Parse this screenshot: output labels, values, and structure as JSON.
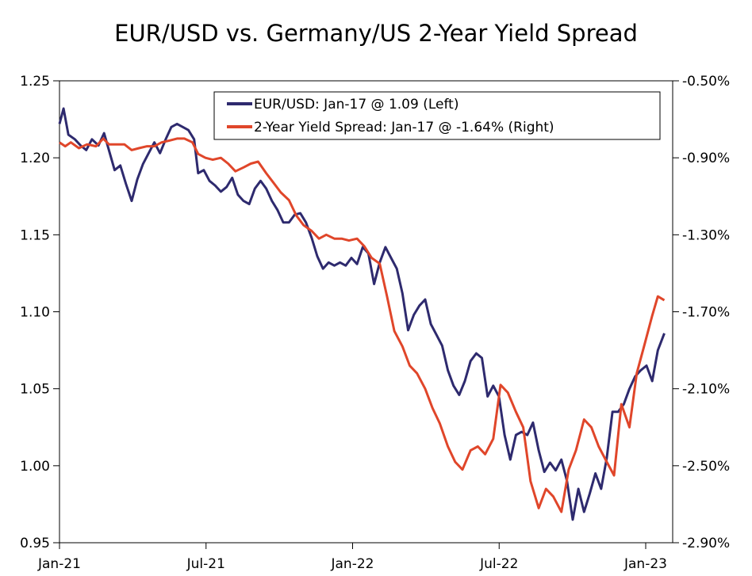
{
  "chart_data": {
    "type": "line",
    "title": "EUR/USD vs. Germany/US 2-Year Yield Spread",
    "x_ticks": [
      "Jan-21",
      "Jul-21",
      "Jan-22",
      "Jul-22",
      "Jan-23"
    ],
    "y_left": {
      "ylim": [
        0.95,
        1.25
      ],
      "ticks": [
        "0.95",
        "1.00",
        "1.05",
        "1.10",
        "1.15",
        "1.20",
        "1.25"
      ]
    },
    "y_right": {
      "ylim": [
        -2.9,
        -0.5
      ],
      "ticks": [
        "-2.90%",
        "-2.50%",
        "-2.10%",
        "-1.70%",
        "-1.30%",
        "-0.90%",
        "-0.50%"
      ]
    },
    "series": [
      {
        "name": "EUR/USD: Jan-17 @ 1.09 (Left)",
        "axis": "left",
        "color": "#2e2a6e",
        "points": [
          [
            "2021-01-01",
            1.222
          ],
          [
            "2021-01-06",
            1.232
          ],
          [
            "2021-01-12",
            1.215
          ],
          [
            "2021-01-20",
            1.212
          ],
          [
            "2021-01-27",
            1.208
          ],
          [
            "2021-02-03",
            1.205
          ],
          [
            "2021-02-10",
            1.212
          ],
          [
            "2021-02-18",
            1.208
          ],
          [
            "2021-02-25",
            1.216
          ],
          [
            "2021-03-03",
            1.205
          ],
          [
            "2021-03-10",
            1.192
          ],
          [
            "2021-03-17",
            1.195
          ],
          [
            "2021-03-24",
            1.183
          ],
          [
            "2021-03-31",
            1.172
          ],
          [
            "2021-04-07",
            1.186
          ],
          [
            "2021-04-14",
            1.196
          ],
          [
            "2021-04-21",
            1.203
          ],
          [
            "2021-04-28",
            1.21
          ],
          [
            "2021-05-05",
            1.203
          ],
          [
            "2021-05-12",
            1.212
          ],
          [
            "2021-05-19",
            1.22
          ],
          [
            "2021-05-26",
            1.222
          ],
          [
            "2021-06-02",
            1.22
          ],
          [
            "2021-06-09",
            1.218
          ],
          [
            "2021-06-16",
            1.212
          ],
          [
            "2021-06-21",
            1.19
          ],
          [
            "2021-06-28",
            1.192
          ],
          [
            "2021-07-05",
            1.185
          ],
          [
            "2021-07-12",
            1.182
          ],
          [
            "2021-07-19",
            1.178
          ],
          [
            "2021-07-26",
            1.181
          ],
          [
            "2021-08-02",
            1.187
          ],
          [
            "2021-08-09",
            1.176
          ],
          [
            "2021-08-16",
            1.172
          ],
          [
            "2021-08-23",
            1.17
          ],
          [
            "2021-08-30",
            1.18
          ],
          [
            "2021-09-06",
            1.185
          ],
          [
            "2021-09-13",
            1.18
          ],
          [
            "2021-09-20",
            1.172
          ],
          [
            "2021-09-27",
            1.166
          ],
          [
            "2021-10-04",
            1.158
          ],
          [
            "2021-10-11",
            1.158
          ],
          [
            "2021-10-18",
            1.163
          ],
          [
            "2021-10-25",
            1.164
          ],
          [
            "2021-11-01",
            1.158
          ],
          [
            "2021-11-08",
            1.148
          ],
          [
            "2021-11-15",
            1.136
          ],
          [
            "2021-11-22",
            1.128
          ],
          [
            "2021-11-29",
            1.132
          ],
          [
            "2021-12-06",
            1.13
          ],
          [
            "2021-12-13",
            1.132
          ],
          [
            "2021-12-20",
            1.13
          ],
          [
            "2021-12-27",
            1.135
          ],
          [
            "2022-01-03",
            1.131
          ],
          [
            "2022-01-10",
            1.142
          ],
          [
            "2022-01-17",
            1.138
          ],
          [
            "2022-01-24",
            1.118
          ],
          [
            "2022-01-31",
            1.132
          ],
          [
            "2022-02-07",
            1.142
          ],
          [
            "2022-02-14",
            1.135
          ],
          [
            "2022-02-21",
            1.128
          ],
          [
            "2022-02-28",
            1.112
          ],
          [
            "2022-03-07",
            1.088
          ],
          [
            "2022-03-14",
            1.098
          ],
          [
            "2022-03-21",
            1.104
          ],
          [
            "2022-03-28",
            1.108
          ],
          [
            "2022-04-04",
            1.092
          ],
          [
            "2022-04-11",
            1.085
          ],
          [
            "2022-04-18",
            1.078
          ],
          [
            "2022-04-25",
            1.062
          ],
          [
            "2022-05-02",
            1.052
          ],
          [
            "2022-05-09",
            1.046
          ],
          [
            "2022-05-16",
            1.055
          ],
          [
            "2022-05-23",
            1.068
          ],
          [
            "2022-05-30",
            1.073
          ],
          [
            "2022-06-06",
            1.07
          ],
          [
            "2022-06-13",
            1.045
          ],
          [
            "2022-06-20",
            1.052
          ],
          [
            "2022-06-27",
            1.045
          ],
          [
            "2022-07-04",
            1.02
          ],
          [
            "2022-07-11",
            1.004
          ],
          [
            "2022-07-18",
            1.02
          ],
          [
            "2022-07-25",
            1.022
          ],
          [
            "2022-08-01",
            1.02
          ],
          [
            "2022-08-08",
            1.028
          ],
          [
            "2022-08-15",
            1.01
          ],
          [
            "2022-08-22",
            0.996
          ],
          [
            "2022-08-29",
            1.002
          ],
          [
            "2022-09-05",
            0.997
          ],
          [
            "2022-09-12",
            1.004
          ],
          [
            "2022-09-19",
            0.99
          ],
          [
            "2022-09-26",
            0.965
          ],
          [
            "2022-10-03",
            0.985
          ],
          [
            "2022-10-10",
            0.97
          ],
          [
            "2022-10-17",
            0.982
          ],
          [
            "2022-10-24",
            0.995
          ],
          [
            "2022-10-31",
            0.985
          ],
          [
            "2022-11-07",
            1.005
          ],
          [
            "2022-11-14",
            1.035
          ],
          [
            "2022-11-21",
            1.035
          ],
          [
            "2022-11-28",
            1.04
          ],
          [
            "2022-12-05",
            1.05
          ],
          [
            "2022-12-12",
            1.058
          ],
          [
            "2022-12-19",
            1.062
          ],
          [
            "2022-12-26",
            1.065
          ],
          [
            "2023-01-02",
            1.055
          ],
          [
            "2023-01-09",
            1.075
          ],
          [
            "2023-01-17",
            1.086
          ]
        ]
      },
      {
        "name": "2-Year Yield Spread: Jan-17 @ -1.64% (Right)",
        "axis": "right",
        "color": "#e0462a",
        "points": [
          [
            "2021-01-01",
            -0.82
          ],
          [
            "2021-01-08",
            -0.84
          ],
          [
            "2021-01-15",
            -0.82
          ],
          [
            "2021-01-25",
            -0.85
          ],
          [
            "2021-02-04",
            -0.83
          ],
          [
            "2021-02-15",
            -0.84
          ],
          [
            "2021-02-24",
            -0.8
          ],
          [
            "2021-03-03",
            -0.83
          ],
          [
            "2021-03-12",
            -0.83
          ],
          [
            "2021-03-22",
            -0.83
          ],
          [
            "2021-03-31",
            -0.86
          ],
          [
            "2021-04-09",
            -0.85
          ],
          [
            "2021-04-19",
            -0.84
          ],
          [
            "2021-04-28",
            -0.84
          ],
          [
            "2021-05-07",
            -0.82
          ],
          [
            "2021-05-17",
            -0.81
          ],
          [
            "2021-05-26",
            -0.8
          ],
          [
            "2021-06-04",
            -0.8
          ],
          [
            "2021-06-14",
            -0.82
          ],
          [
            "2021-06-21",
            -0.88
          ],
          [
            "2021-06-30",
            -0.9
          ],
          [
            "2021-07-09",
            -0.91
          ],
          [
            "2021-07-19",
            -0.9
          ],
          [
            "2021-07-28",
            -0.93
          ],
          [
            "2021-08-06",
            -0.97
          ],
          [
            "2021-08-16",
            -0.95
          ],
          [
            "2021-08-25",
            -0.93
          ],
          [
            "2021-09-03",
            -0.92
          ],
          [
            "2021-09-13",
            -0.98
          ],
          [
            "2021-09-22",
            -1.03
          ],
          [
            "2021-10-01",
            -1.08
          ],
          [
            "2021-10-11",
            -1.12
          ],
          [
            "2021-10-20",
            -1.2
          ],
          [
            "2021-10-29",
            -1.25
          ],
          [
            "2021-11-08",
            -1.28
          ],
          [
            "2021-11-17",
            -1.32
          ],
          [
            "2021-11-26",
            -1.3
          ],
          [
            "2021-12-06",
            -1.32
          ],
          [
            "2021-12-15",
            -1.32
          ],
          [
            "2021-12-24",
            -1.33
          ],
          [
            "2022-01-03",
            -1.32
          ],
          [
            "2022-01-12",
            -1.36
          ],
          [
            "2022-01-21",
            -1.42
          ],
          [
            "2022-01-31",
            -1.45
          ],
          [
            "2022-02-09",
            -1.62
          ],
          [
            "2022-02-18",
            -1.8
          ],
          [
            "2022-02-28",
            -1.88
          ],
          [
            "2022-03-09",
            -1.98
          ],
          [
            "2022-03-18",
            -2.02
          ],
          [
            "2022-03-28",
            -2.1
          ],
          [
            "2022-04-06",
            -2.2
          ],
          [
            "2022-04-15",
            -2.28
          ],
          [
            "2022-04-25",
            -2.4
          ],
          [
            "2022-05-04",
            -2.48
          ],
          [
            "2022-05-13",
            -2.52
          ],
          [
            "2022-05-23",
            -2.42
          ],
          [
            "2022-06-01",
            -2.4
          ],
          [
            "2022-06-10",
            -2.44
          ],
          [
            "2022-06-20",
            -2.36
          ],
          [
            "2022-06-29",
            -2.08
          ],
          [
            "2022-07-08",
            -2.12
          ],
          [
            "2022-07-18",
            -2.22
          ],
          [
            "2022-07-27",
            -2.3
          ],
          [
            "2022-08-05",
            -2.58
          ],
          [
            "2022-08-15",
            -2.72
          ],
          [
            "2022-08-24",
            -2.62
          ],
          [
            "2022-09-02",
            -2.66
          ],
          [
            "2022-09-12",
            -2.74
          ],
          [
            "2022-09-21",
            -2.52
          ],
          [
            "2022-09-30",
            -2.42
          ],
          [
            "2022-10-10",
            -2.26
          ],
          [
            "2022-10-19",
            -2.3
          ],
          [
            "2022-10-28",
            -2.4
          ],
          [
            "2022-11-07",
            -2.48
          ],
          [
            "2022-11-16",
            -2.55
          ],
          [
            "2022-11-25",
            -2.18
          ],
          [
            "2022-12-05",
            -2.3
          ],
          [
            "2022-12-14",
            -2.02
          ],
          [
            "2022-12-23",
            -1.88
          ],
          [
            "2023-01-02",
            -1.72
          ],
          [
            "2023-01-09",
            -1.62
          ],
          [
            "2023-01-17",
            -1.64
          ]
        ]
      }
    ]
  }
}
